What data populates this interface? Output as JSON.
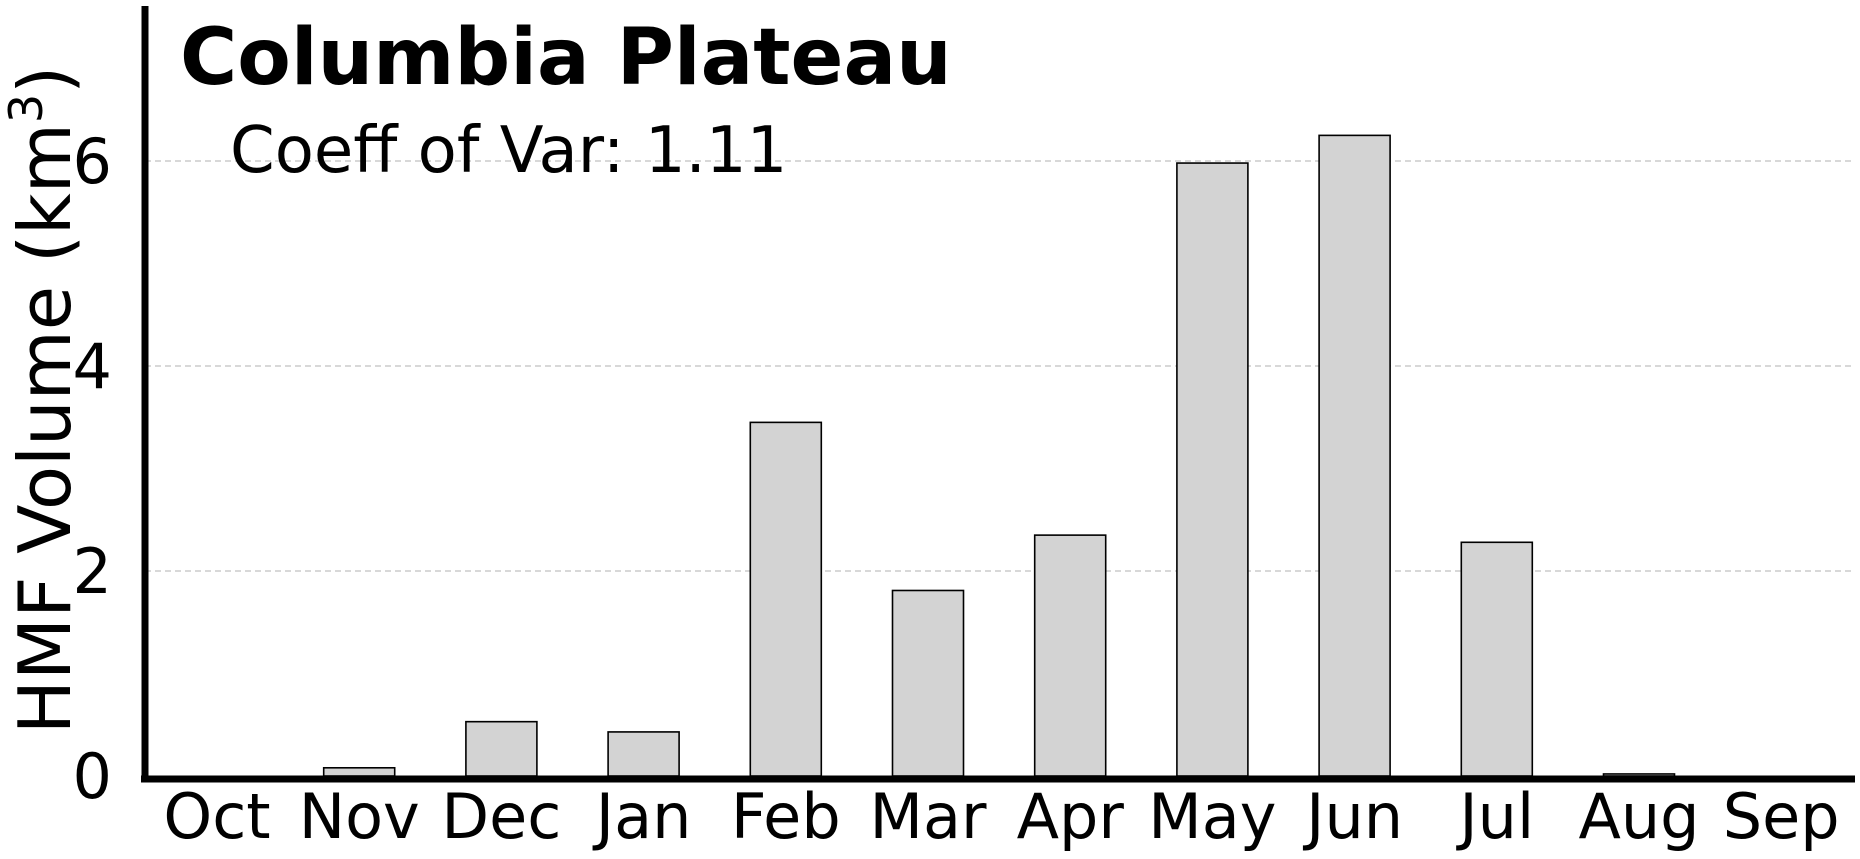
{
  "chart_data": {
    "type": "bar",
    "title": "Columbia Plateau",
    "annotation": "Coeff of Var: 1.11",
    "ylabel_main": "HMF Volume (km",
    "ylabel_sup": "3",
    "ylabel_close": ")",
    "xlabel": "",
    "categories": [
      "Oct",
      "Nov",
      "Dec",
      "Jan",
      "Feb",
      "Mar",
      "Apr",
      "May",
      "Jun",
      "Jul",
      "Aug",
      "Sep"
    ],
    "values": [
      0.0,
      0.08,
      0.53,
      0.43,
      3.45,
      1.81,
      2.35,
      5.98,
      6.25,
      2.28,
      0.02,
      0.0
    ],
    "ylim": [
      0,
      7.5
    ],
    "yticks": [
      "0",
      "2",
      "4",
      "6"
    ],
    "ytick_values": [
      0,
      2,
      4,
      6
    ],
    "grid": "horizontal dashed",
    "bar_color": "#d3d3d3",
    "bar_edge_color": "#000000",
    "grid_color": "#cccccc"
  }
}
